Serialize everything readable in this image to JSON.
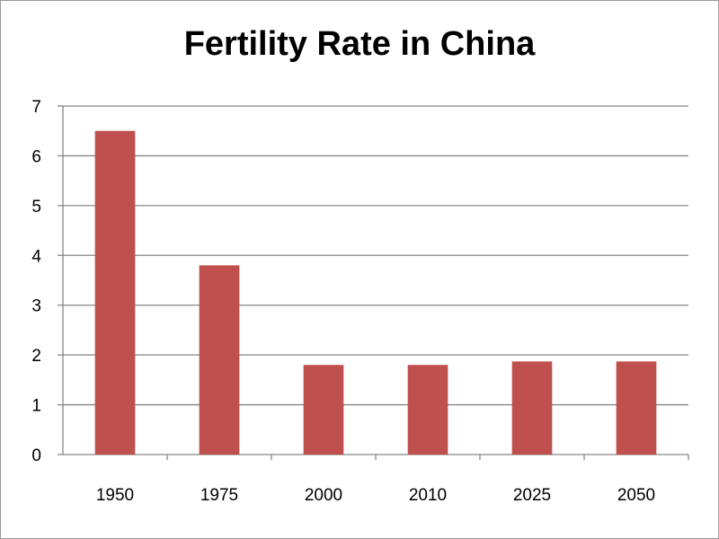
{
  "chart_data": {
    "type": "bar",
    "title": "Fertility Rate in China",
    "categories": [
      "1950",
      "1975",
      "2000",
      "2010",
      "2025",
      "2050"
    ],
    "values": [
      6.5,
      3.8,
      1.8,
      1.8,
      1.87,
      1.87
    ],
    "ylim": [
      0,
      7
    ],
    "yticks": [
      "0",
      "1",
      "2",
      "3",
      "4",
      "5",
      "6",
      "7"
    ],
    "grid": true,
    "legend": "none",
    "bar_color": "#c0504d",
    "gridline_color": "#868686"
  }
}
